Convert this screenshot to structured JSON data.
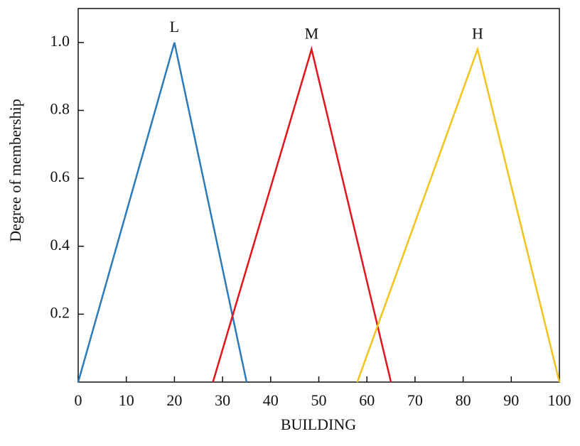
{
  "chart_data": {
    "type": "line",
    "x_label": "BUILDING",
    "y_label": "Degree of membership",
    "series": [
      {
        "name": "L",
        "color": "#2b7bba",
        "x": [
          0,
          20,
          35
        ],
        "values": [
          0,
          1,
          0
        ]
      },
      {
        "name": "M",
        "color": "#e3151c",
        "x": [
          28,
          48.5,
          65
        ],
        "values": [
          0,
          0.98,
          0
        ]
      },
      {
        "name": "H",
        "color": "#f2c31c",
        "x": [
          58,
          83,
          100
        ],
        "values": [
          0,
          0.98,
          0
        ]
      }
    ],
    "xlim": [
      0,
      100
    ],
    "xticks": [
      0,
      10,
      20,
      30,
      40,
      50,
      60,
      70,
      80,
      90,
      100
    ],
    "ylim": [
      0,
      1.1
    ],
    "yticks": [
      0.2,
      0.4,
      0.6,
      0.8,
      {
        "value": 1,
        "label": "1.0"
      }
    ],
    "grid": false
  }
}
